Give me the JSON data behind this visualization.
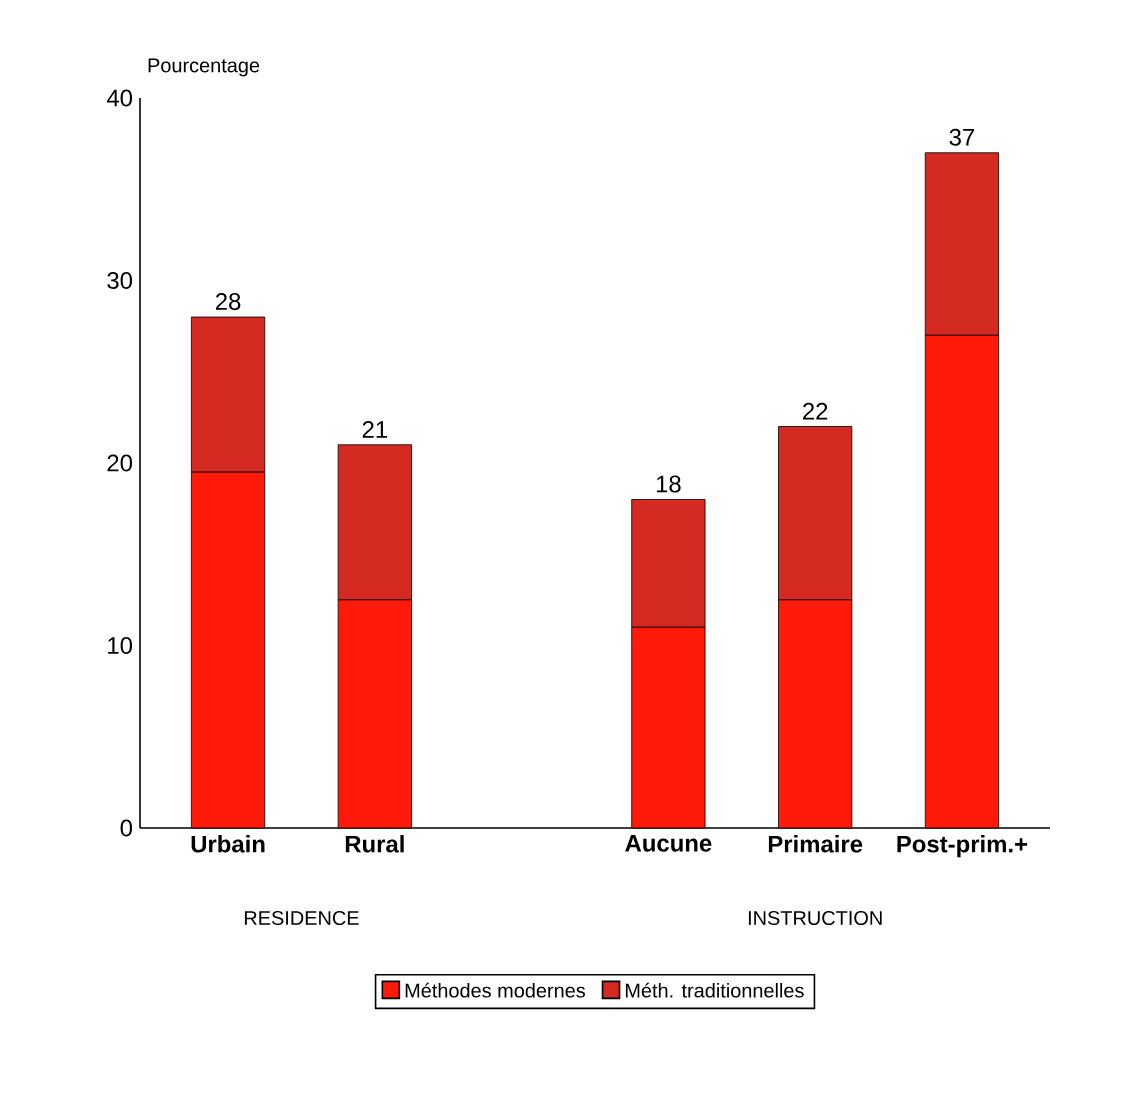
{
  "chart_data": {
    "type": "bar",
    "stacked": true,
    "ylabel": "Pourcentage",
    "categories": [
      "Urbain",
      "Rural",
      null,
      "Aucune",
      "Primaire",
      "Post-prim.+"
    ],
    "series": [
      {
        "name": "Méthodes modernes",
        "color": "#ff1a0a",
        "values": [
          19.5,
          12.5,
          null,
          11,
          12.5,
          27
        ]
      },
      {
        "name": "Méth. traditionnelles",
        "color": "#d42a22",
        "values": [
          8.5,
          8.5,
          null,
          7,
          9.5,
          10
        ]
      }
    ],
    "totals": [
      "28",
      "21",
      null,
      "18",
      "22",
      "37"
    ],
    "ylim": [
      0,
      40
    ],
    "yticks": [
      0,
      10,
      20,
      30,
      40
    ],
    "annotations": [
      "RESIDENCE",
      "INSTRUCTION"
    ],
    "legend": "bottom"
  }
}
